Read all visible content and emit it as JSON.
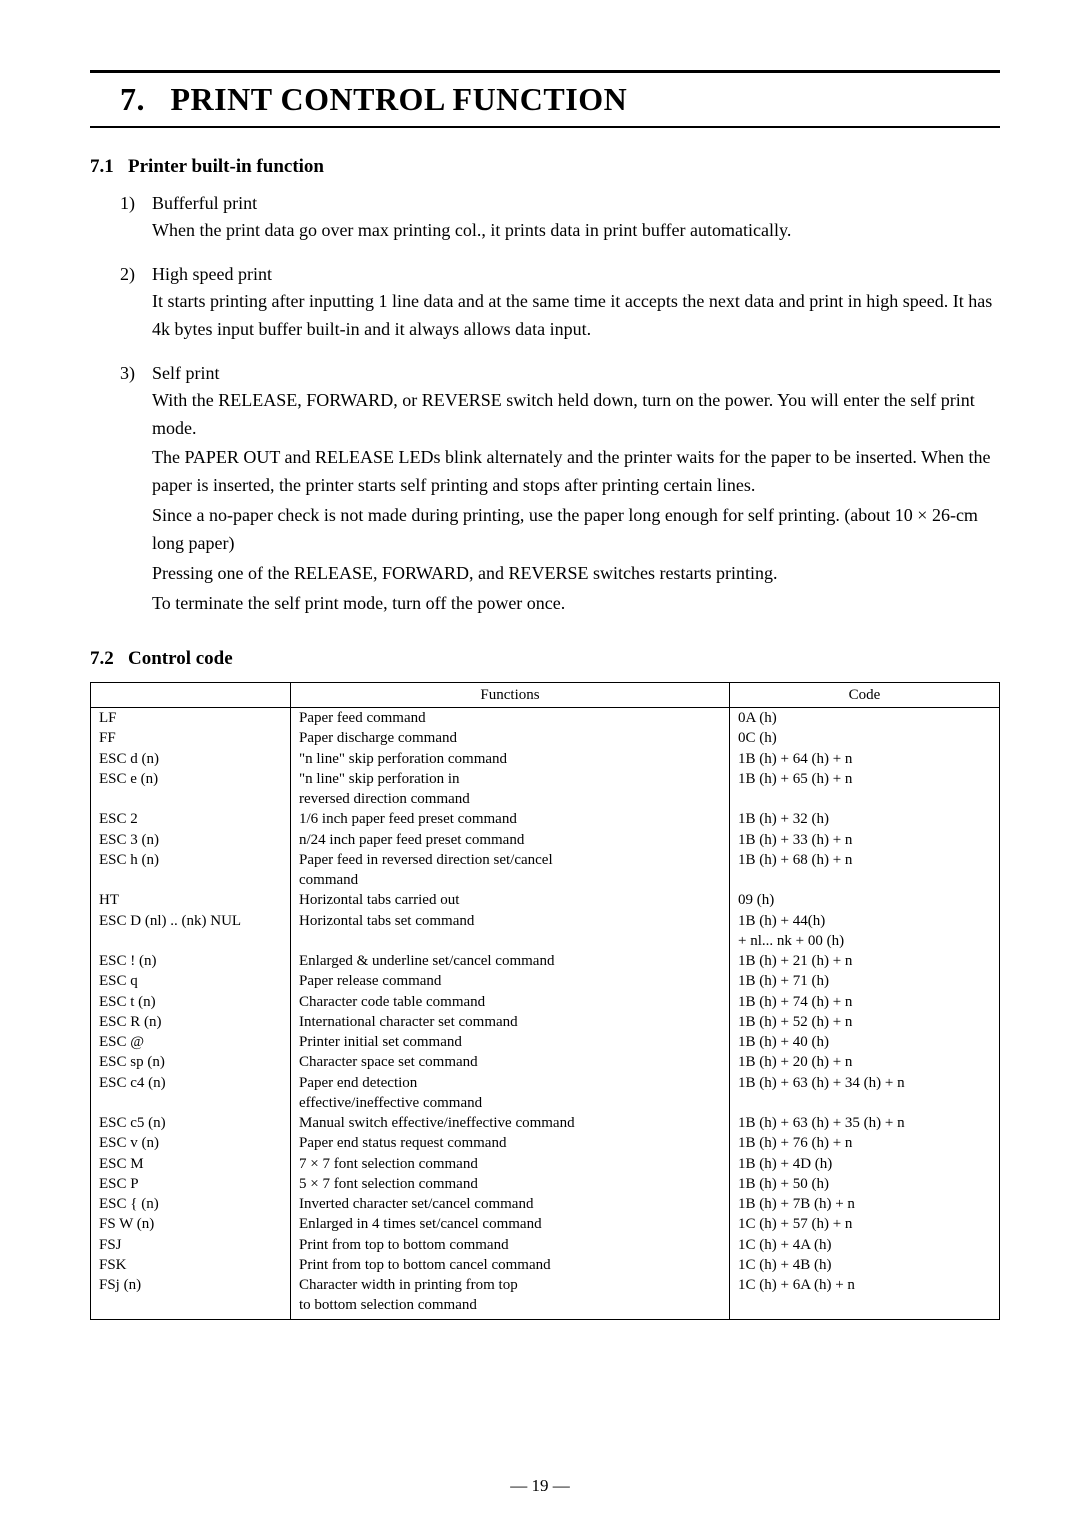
{
  "chapter": {
    "number": "7.",
    "title": "PRINT CONTROL FUNCTION"
  },
  "section1": {
    "number": "7.1",
    "title": "Printer built-in function",
    "items": [
      {
        "num": "1)",
        "head": "Bufferful print",
        "paras": [
          "When the print data go over max printing col., it prints data in print buffer automatically."
        ]
      },
      {
        "num": "2)",
        "head": "High speed print",
        "paras": [
          "It starts printing after inputting 1 line data and at the same time it accepts the next data and print in high speed. It has 4k bytes input buffer built-in and it always allows data input."
        ]
      },
      {
        "num": "3)",
        "head": "Self print",
        "paras": [
          "With the RELEASE, FORWARD, or REVERSE switch held down, turn on the power. You will enter the self print mode.",
          "The PAPER OUT and RELEASE LEDs blink alternately and the printer waits for the paper to be inserted. When the paper is inserted, the printer starts self printing and stops after printing certain lines.",
          "Since a no-paper check is not made during printing, use the paper long enough for self printing. (about 10 × 26-cm long paper)",
          "Pressing one of the RELEASE, FORWARD, and REVERSE switches restarts printing.",
          "To terminate the self print mode, turn off the power once."
        ]
      }
    ]
  },
  "section2": {
    "number": "7.2",
    "title": "Control code",
    "headers": {
      "c1": "",
      "c2": "Functions",
      "c3": "Code"
    },
    "rows": [
      {
        "name": "LF",
        "func": "Paper feed command",
        "code": "0A (h)"
      },
      {
        "name": "FF",
        "func": "Paper discharge command",
        "code": "0C (h)"
      },
      {
        "name": "ESC d (n)",
        "func": "\"n line\" skip perforation command",
        "code": "1B (h) + 64 (h) + n"
      },
      {
        "name": "ESC e (n)",
        "func": "\"n line\" skip perforation in",
        "code": "1B (h) + 65 (h) + n"
      },
      {
        "name": "",
        "func": "reversed direction command",
        "code": ""
      },
      {
        "name": "ESC 2",
        "func": "1/6 inch paper feed preset command",
        "code": "1B (h) + 32 (h)"
      },
      {
        "name": "ESC 3 (n)",
        "func": "n/24 inch paper feed preset command",
        "code": "1B (h) + 33 (h) + n"
      },
      {
        "name": "ESC h (n)",
        "func": "Paper feed in reversed direction set/cancel",
        "code": "1B (h) + 68 (h) + n"
      },
      {
        "name": "",
        "func": "command",
        "code": ""
      },
      {
        "name": "HT",
        "func": "Horizontal tabs carried out",
        "code": "09 (h)"
      },
      {
        "name": "ESC D (nl) .. (nk) NUL",
        "func": "Horizontal tabs set command",
        "code": "1B (h) + 44(h)"
      },
      {
        "name": "",
        "func": "",
        "code": "+ nl... nk + 00 (h)"
      },
      {
        "name": "ESC ! (n)",
        "func": "Enlarged & underline set/cancel command",
        "code": "1B (h) + 21 (h) + n"
      },
      {
        "name": "ESC q",
        "func": "Paper release command",
        "code": "1B (h) + 71 (h)"
      },
      {
        "name": "ESC t (n)",
        "func": "Character code table command",
        "code": "1B (h) + 74 (h) + n"
      },
      {
        "name": "ESC R (n)",
        "func": "International character set command",
        "code": "1B (h) + 52 (h) + n"
      },
      {
        "name": "ESC @",
        "func": "Printer initial set command",
        "code": "1B (h) + 40 (h)"
      },
      {
        "name": "ESC sp (n)",
        "func": "Character space set command",
        "code": "1B (h) + 20 (h) + n"
      },
      {
        "name": "ESC c4 (n)",
        "func": "Paper end detection",
        "code": "1B (h) + 63 (h) + 34 (h) + n"
      },
      {
        "name": "",
        "func": "effective/ineffective command",
        "code": ""
      },
      {
        "name": "ESC c5 (n)",
        "func": "Manual switch effective/ineffective command",
        "code": "1B (h) + 63 (h) + 35 (h) + n"
      },
      {
        "name": "ESC v (n)",
        "func": "Paper end status request command",
        "code": "1B (h) + 76 (h) + n"
      },
      {
        "name": "ESC M",
        "func": "7 × 7 font selection command",
        "code": "1B (h) + 4D (h)"
      },
      {
        "name": "ESC P",
        "func": "5 × 7 font selection command",
        "code": "1B (h) + 50 (h)"
      },
      {
        "name": "ESC { (n)",
        "func": "Inverted character set/cancel command",
        "code": "1B (h) + 7B (h) + n"
      },
      {
        "name": "FS W (n)",
        "func": "Enlarged in 4 times set/cancel command",
        "code": "1C (h) + 57 (h) + n"
      },
      {
        "name": "FSJ",
        "func": "Print from top to bottom command",
        "code": "1C (h) + 4A (h)"
      },
      {
        "name": "FSK",
        "func": "Print from top to bottom cancel command",
        "code": "1C (h) + 4B (h)"
      },
      {
        "name": "FSj (n)",
        "func": "Character width in printing from top",
        "code": "1C (h) + 6A (h) + n"
      },
      {
        "name": "",
        "func": "to bottom selection command",
        "code": ""
      }
    ]
  },
  "page_number": "— 19 —"
}
